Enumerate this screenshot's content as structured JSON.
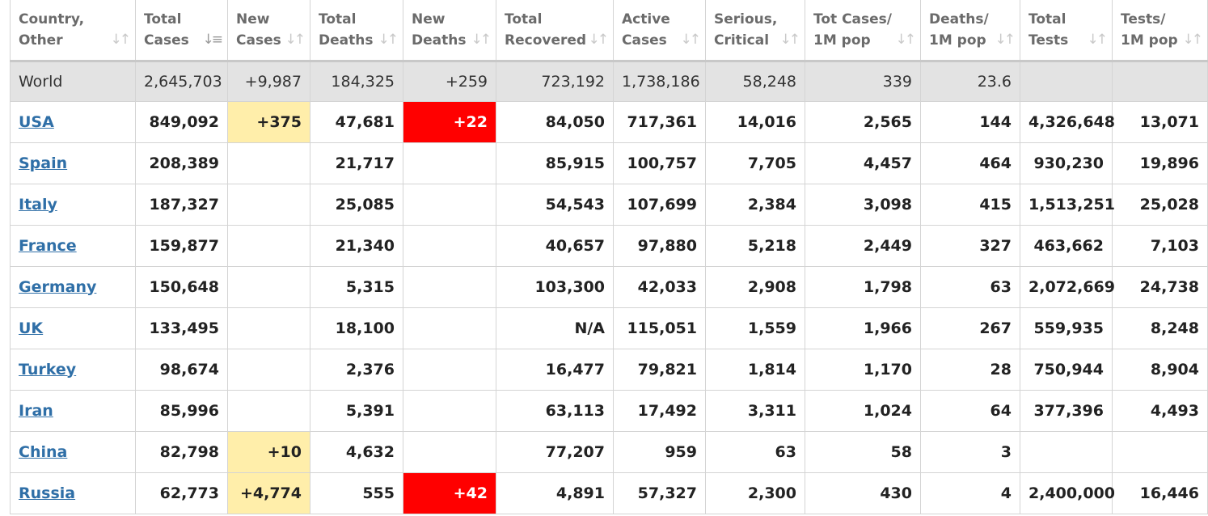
{
  "colors": {
    "new_cases_highlight": "#ffeeaa",
    "new_deaths_highlight": "#ff0000",
    "link": "#2f6fa7",
    "world_row": "#e3e3e3"
  },
  "headers": [
    {
      "l1": "Country,",
      "l2": "Other"
    },
    {
      "l1": "Total",
      "l2": "Cases"
    },
    {
      "l1": "New",
      "l2": "Cases"
    },
    {
      "l1": "Total",
      "l2": "Deaths"
    },
    {
      "l1": "New",
      "l2": "Deaths"
    },
    {
      "l1": "Total",
      "l2": "Recovered"
    },
    {
      "l1": "Active",
      "l2": "Cases"
    },
    {
      "l1": "Serious,",
      "l2": "Critical"
    },
    {
      "l1": "Tot Cases/",
      "l2": "1M pop"
    },
    {
      "l1": "Deaths/",
      "l2": "1M pop"
    },
    {
      "l1": "Total",
      "l2": "Tests"
    },
    {
      "l1": "Tests/",
      "l2": "1M pop"
    }
  ],
  "world": [
    "World",
    "2,645,703",
    "+9,987",
    "184,325",
    "+259",
    "723,192",
    "1,738,186",
    "58,248",
    "339",
    "23.6",
    "",
    ""
  ],
  "rows": [
    [
      "USA",
      "849,092",
      "+375",
      "47,681",
      "+22",
      "84,050",
      "717,361",
      "14,016",
      "2,565",
      "144",
      "4,326,648",
      "13,071"
    ],
    [
      "Spain",
      "208,389",
      "",
      "21,717",
      "",
      "85,915",
      "100,757",
      "7,705",
      "4,457",
      "464",
      "930,230",
      "19,896"
    ],
    [
      "Italy",
      "187,327",
      "",
      "25,085",
      "",
      "54,543",
      "107,699",
      "2,384",
      "3,098",
      "415",
      "1,513,251",
      "25,028"
    ],
    [
      "France",
      "159,877",
      "",
      "21,340",
      "",
      "40,657",
      "97,880",
      "5,218",
      "2,449",
      "327",
      "463,662",
      "7,103"
    ],
    [
      "Germany",
      "150,648",
      "",
      "5,315",
      "",
      "103,300",
      "42,033",
      "2,908",
      "1,798",
      "63",
      "2,072,669",
      "24,738"
    ],
    [
      "UK",
      "133,495",
      "",
      "18,100",
      "",
      "N/A",
      "115,051",
      "1,559",
      "1,966",
      "267",
      "559,935",
      "8,248"
    ],
    [
      "Turkey",
      "98,674",
      "",
      "2,376",
      "",
      "16,477",
      "79,821",
      "1,814",
      "1,170",
      "28",
      "750,944",
      "8,904"
    ],
    [
      "Iran",
      "85,996",
      "",
      "5,391",
      "",
      "63,113",
      "17,492",
      "3,311",
      "1,024",
      "64",
      "377,396",
      "4,493"
    ],
    [
      "China",
      "82,798",
      "+10",
      "4,632",
      "",
      "77,207",
      "959",
      "63",
      "58",
      "3",
      "",
      ""
    ],
    [
      "Russia",
      "62,773",
      "+4,774",
      "555",
      "+42",
      "4,891",
      "57,327",
      "2,300",
      "430",
      "4",
      "2,400,000",
      "16,446"
    ]
  ]
}
